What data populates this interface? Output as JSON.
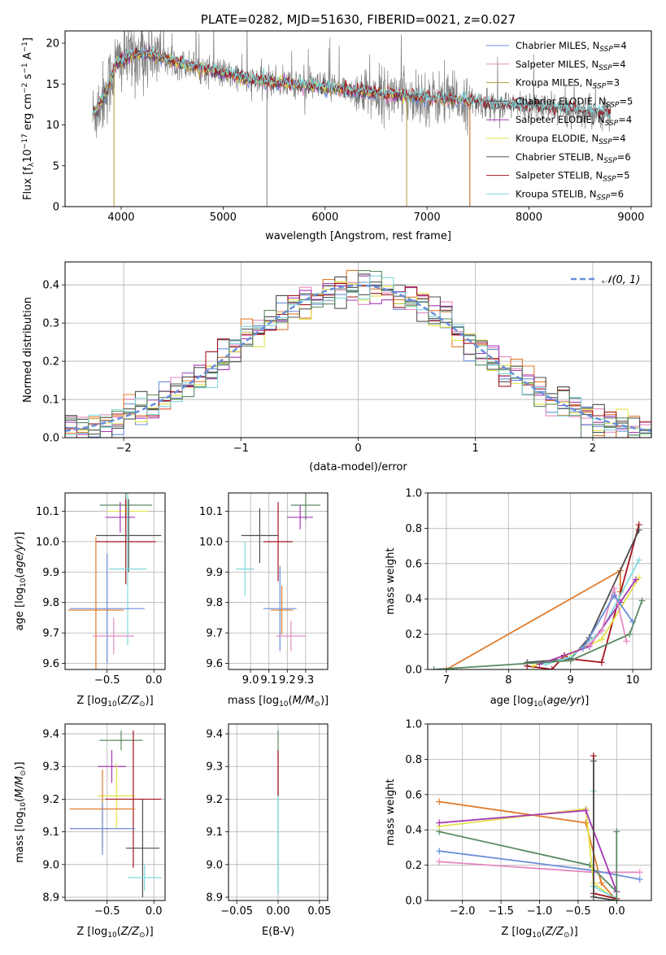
{
  "colors": {
    "Chabrier MILES": "#6a8ed9",
    "Salpeter MILES": "#e68bc2",
    "Kroupa MILES": "#b39a3a",
    "Chabrier ELODIE": "#4d4d4d",
    "Salpeter ELODIE": "#a637b5",
    "Kroupa ELODIE": "#e3e34a",
    "Chabrier STELIB": "#555555",
    "Salpeter STELIB": "#a5141e",
    "Kroupa STELIB": "#7fd9db",
    "orange": "#e07b2b",
    "green": "#5a8a64"
  },
  "chart_data": [
    {
      "id": "spectrum",
      "type": "line",
      "title": "PLATE=0282, MJD=51630, FIBERID=0021, z=0.027",
      "xlabel": "wavelength [Angstrom, rest frame]",
      "ylabel": "Flux [fλ10⁻¹⁷ erg cm⁻² s⁻¹ A⁻¹]",
      "xlim": [
        3450,
        9200
      ],
      "ylim": [
        0,
        21.5
      ],
      "xticks": [
        4000,
        5000,
        6000,
        7000,
        8000,
        9000
      ],
      "yticks": [
        0,
        5,
        10,
        15,
        20
      ],
      "grid": false,
      "legend_position": "top-right",
      "legend": [
        {
          "label": "Chabrier MILES, N",
          "sub": "SSP",
          "suffix": "=4",
          "key": "Chabrier MILES"
        },
        {
          "label": "Salpeter MILES, N",
          "sub": "SSP",
          "suffix": "=4",
          "key": "Salpeter MILES"
        },
        {
          "label": "Kroupa MILES, N",
          "sub": "SSP",
          "suffix": "=3",
          "key": "Kroupa MILES"
        },
        {
          "label": "Chabrier ELODIE, N",
          "sub": "SSP",
          "suffix": "=5",
          "key": "Chabrier ELODIE"
        },
        {
          "label": "Salpeter ELODIE, N",
          "sub": "SSP",
          "suffix": "=4",
          "key": "Salpeter ELODIE"
        },
        {
          "label": "Kroupa ELODIE, N",
          "sub": "SSP",
          "suffix": "=4",
          "key": "Kroupa ELODIE"
        },
        {
          "label": "Chabrier STELIB, N",
          "sub": "SSP",
          "suffix": "=6",
          "key": "Chabrier STELIB"
        },
        {
          "label": "Salpeter STELIB, N",
          "sub": "SSP",
          "suffix": "=5",
          "key": "Salpeter STELIB"
        },
        {
          "label": "Kroupa STELIB, N",
          "sub": "SSP",
          "suffix": "=6",
          "key": "Kroupa STELIB"
        }
      ],
      "continuum": [
        [
          3720,
          11
        ],
        [
          3850,
          14
        ],
        [
          3950,
          17.5
        ],
        [
          4100,
          18.5
        ],
        [
          4300,
          18.6
        ],
        [
          4500,
          17.8
        ],
        [
          4700,
          17.2
        ],
        [
          4900,
          16.6
        ],
        [
          5100,
          16
        ],
        [
          5300,
          15.4
        ],
        [
          5600,
          15.1
        ],
        [
          6000,
          14.6
        ],
        [
          6300,
          14.1
        ],
        [
          6600,
          13.7
        ],
        [
          7000,
          13.3
        ],
        [
          7400,
          12.9
        ],
        [
          7700,
          12.4
        ],
        [
          8000,
          12.3
        ],
        [
          8300,
          11.9
        ],
        [
          8600,
          11.6
        ],
        [
          8800,
          11.3
        ]
      ],
      "dips": [
        [
          3930,
          0
        ],
        [
          5430,
          0
        ],
        [
          6800,
          0
        ],
        [
          7420,
          0
        ]
      ]
    },
    {
      "id": "residuals",
      "type": "histogram",
      "xlabel": "(data-model)/error",
      "ylabel": "Normed distribution",
      "xlim": [
        -2.5,
        2.5
      ],
      "ylim": [
        0,
        0.46
      ],
      "xticks": [
        -2,
        -1,
        0,
        1,
        2
      ],
      "yticks": [
        0.0,
        0.1,
        0.2,
        0.3,
        0.4
      ],
      "grid": true,
      "legend_position": "top-right",
      "legend_label": "𝒩(0, 1)",
      "reference": {
        "type": "normal",
        "mean": 0,
        "sigma": 1
      }
    },
    {
      "id": "age-vs-Z",
      "type": "errorbar",
      "xlabel": "Z [log₁₀(Z/Z⊙)]",
      "ylabel": "age  [log₁₀(age/yr)]",
      "xlim": [
        -0.95,
        0.12
      ],
      "ylim": [
        9.58,
        10.16
      ],
      "xticks": [
        -0.5,
        0.0
      ],
      "yticks": [
        9.6,
        9.7,
        9.8,
        9.9,
        10.0,
        10.1
      ],
      "grid": true,
      "points": [
        {
          "x": -0.3,
          "y": 10.12,
          "xerr": 0.28,
          "yerr": 0.04,
          "color": "green"
        },
        {
          "x": -0.28,
          "y": 10.1,
          "xerr": 0.22,
          "yerr": 0.03,
          "color": "Kroupa ELODIE"
        },
        {
          "x": -0.36,
          "y": 10.08,
          "xerr": 0.16,
          "yerr": 0.05,
          "color": "Salpeter ELODIE"
        },
        {
          "x": -0.27,
          "y": 10.02,
          "xerr": 0.35,
          "yerr": 0.12,
          "color": "Chabrier ELODIE"
        },
        {
          "x": -0.3,
          "y": 10.0,
          "xerr": 0.32,
          "yerr": 0.14,
          "color": "Salpeter STELIB"
        },
        {
          "x": -0.28,
          "y": 9.91,
          "xerr": 0.2,
          "yerr": 0.25,
          "color": "Kroupa STELIB"
        },
        {
          "x": -0.5,
          "y": 9.78,
          "xerr": 0.4,
          "yerr": 0.18,
          "color": "Chabrier MILES"
        },
        {
          "x": -0.62,
          "y": 9.775,
          "xerr": 0.3,
          "yerr": 0.24,
          "color": "orange"
        },
        {
          "x": -0.43,
          "y": 9.69,
          "xerr": 0.22,
          "yerr": 0.06,
          "color": "Salpeter MILES"
        }
      ]
    },
    {
      "id": "age-vs-mass",
      "type": "errorbar",
      "xlabel": "mass [log₁₀(M/M⊙)]",
      "ylabel": "",
      "xlim": [
        8.88,
        9.42
      ],
      "ylim": [
        9.58,
        10.16
      ],
      "xticks": [
        9.0,
        9.1,
        9.2,
        9.3
      ],
      "yticks": [
        9.6,
        9.7,
        9.8,
        9.9,
        10.0,
        10.1
      ],
      "grid": true,
      "points": [
        {
          "x": 9.3,
          "y": 10.12,
          "xerr": 0.08,
          "yerr": 0.05,
          "color": "green"
        },
        {
          "x": 9.27,
          "y": 10.08,
          "xerr": 0.07,
          "yerr": 0.04,
          "color": "Salpeter ELODIE"
        },
        {
          "x": 9.05,
          "y": 10.02,
          "xerr": 0.1,
          "yerr": 0.09,
          "color": "Chabrier ELODIE"
        },
        {
          "x": 9.15,
          "y": 10.0,
          "xerr": 0.08,
          "yerr": 0.13,
          "color": "Salpeter STELIB"
        },
        {
          "x": 8.97,
          "y": 9.91,
          "xerr": 0.05,
          "yerr": 0.09,
          "color": "Kroupa STELIB"
        },
        {
          "x": 9.16,
          "y": 9.78,
          "xerr": 0.09,
          "yerr": 0.14,
          "color": "Chabrier MILES"
        },
        {
          "x": 9.17,
          "y": 9.775,
          "xerr": 0.06,
          "yerr": 0.08,
          "color": "orange"
        },
        {
          "x": 9.22,
          "y": 9.69,
          "xerr": 0.08,
          "yerr": 0.05,
          "color": "Salpeter MILES"
        }
      ]
    },
    {
      "id": "weight-vs-age",
      "type": "line",
      "xlabel": "age  [log₁₀(age/yr)]",
      "ylabel": "mass weight",
      "xlim": [
        6.7,
        10.3
      ],
      "ylim": [
        0,
        1.0
      ],
      "xticks": [
        7,
        8,
        9,
        10
      ],
      "yticks": [
        0.0,
        0.2,
        0.4,
        0.6,
        0.8,
        1.0
      ],
      "grid": true,
      "series": [
        {
          "color": "orange",
          "x": [
            7.0,
            9.8,
            9.8
          ],
          "y": [
            0.0,
            0.56,
            0.44
          ]
        },
        {
          "color": "Salpeter STELIB",
          "x": [
            8.3,
            8.7,
            8.9,
            9.0,
            9.5,
            10.1
          ],
          "y": [
            0.02,
            0.0,
            0.08,
            0.06,
            0.04,
            0.82
          ]
        },
        {
          "color": "Chabrier ELODIE",
          "x": [
            8.3,
            9.0,
            9.3,
            10.1
          ],
          "y": [
            0.04,
            0.06,
            0.18,
            0.79
          ]
        },
        {
          "color": "Kroupa STELIB",
          "x": [
            8.6,
            9.0,
            9.5,
            10.1
          ],
          "y": [
            0.03,
            0.07,
            0.22,
            0.62
          ]
        },
        {
          "color": "Kroupa ELODIE",
          "x": [
            8.4,
            9.0,
            9.5,
            10.1
          ],
          "y": [
            0.02,
            0.09,
            0.17,
            0.52
          ]
        },
        {
          "color": "Salpeter ELODIE",
          "x": [
            8.5,
            9.3,
            9.8,
            10.05
          ],
          "y": [
            0.03,
            0.13,
            0.38,
            0.51
          ]
        },
        {
          "color": "Salpeter MILES",
          "x": [
            9.3,
            9.5,
            9.7,
            9.9
          ],
          "y": [
            0.14,
            0.22,
            0.46,
            0.16
          ]
        },
        {
          "color": "Chabrier MILES",
          "x": [
            9.2,
            9.7,
            10.0
          ],
          "y": [
            0.12,
            0.42,
            0.27
          ]
        },
        {
          "color": "green",
          "x": [
            6.8,
            9.0,
            9.95,
            10.15
          ],
          "y": [
            0.0,
            0.05,
            0.2,
            0.39
          ]
        }
      ]
    },
    {
      "id": "mass-vs-Z",
      "type": "errorbar",
      "xlabel": "Z [log₁₀(Z/Z⊙)]",
      "ylabel": "mass [log₁₀(M/M⊙)]",
      "xlim": [
        -0.95,
        0.12
      ],
      "ylim": [
        8.89,
        9.43
      ],
      "xticks": [
        -0.5,
        0.0
      ],
      "yticks": [
        8.9,
        9.0,
        9.1,
        9.2,
        9.3,
        9.4
      ],
      "grid": true,
      "points": [
        {
          "x": -0.35,
          "y": 9.38,
          "xerr": 0.23,
          "yerr": 0.03,
          "color": "green"
        },
        {
          "x": -0.45,
          "y": 9.3,
          "xerr": 0.15,
          "yerr": 0.05,
          "color": "Salpeter ELODIE"
        },
        {
          "x": -0.4,
          "y": 9.21,
          "xerr": 0.2,
          "yerr": 0.1,
          "color": "Kroupa ELODIE"
        },
        {
          "x": -0.22,
          "y": 9.2,
          "xerr": 0.3,
          "yerr": 0.21,
          "color": "Salpeter STELIB"
        },
        {
          "x": -0.55,
          "y": 9.17,
          "xerr": 0.35,
          "yerr": 0.12,
          "color": "orange"
        },
        {
          "x": -0.55,
          "y": 9.11,
          "xerr": 0.35,
          "yerr": 0.08,
          "color": "Chabrier MILES"
        },
        {
          "x": -0.12,
          "y": 9.05,
          "xerr": 0.18,
          "yerr": 0.15,
          "color": "Chabrier ELODIE"
        },
        {
          "x": -0.1,
          "y": 8.96,
          "xerr": 0.18,
          "yerr": 0.04,
          "color": "Kroupa STELIB"
        }
      ]
    },
    {
      "id": "mass-vs-ebv",
      "type": "errorbar",
      "xlabel": "E(B-V)",
      "ylabel": "",
      "xlim": [
        -0.06,
        0.06
      ],
      "ylim": [
        8.89,
        9.43
      ],
      "xticks": [
        -0.05,
        0.0,
        0.05
      ],
      "yticks": [
        8.9,
        9.0,
        9.1,
        9.2,
        9.3,
        9.4
      ],
      "grid": true,
      "points": [
        {
          "x": 0.0,
          "y": 9.16,
          "xerr": 0.0,
          "yerr": 0.25,
          "color": "green"
        },
        {
          "x": 0.0,
          "y": 9.28,
          "xerr": 0.0,
          "yerr": 0.07,
          "color": "Salpeter STELIB"
        },
        {
          "x": 0.0,
          "y": 9.06,
          "xerr": 0.0,
          "yerr": 0.15,
          "color": "Kroupa STELIB"
        }
      ]
    },
    {
      "id": "weight-vs-Z",
      "type": "line",
      "xlabel": "Z [log₁₀(Z/Z⊙)]",
      "ylabel": "mass weight",
      "xlim": [
        -2.45,
        0.45
      ],
      "ylim": [
        0,
        1.0
      ],
      "xticks": [
        -2.0,
        -1.5,
        -1.0,
        -0.5,
        0.0
      ],
      "yticks": [
        0.0,
        0.2,
        0.4,
        0.6,
        0.8,
        1.0
      ],
      "grid": true,
      "series": [
        {
          "color": "orange",
          "x": [
            -2.3,
            -0.4,
            -0.2,
            0.0
          ],
          "y": [
            0.56,
            0.44,
            0.1,
            0.0
          ]
        },
        {
          "color": "Salpeter MILES",
          "x": [
            -2.3,
            -0.3,
            0.3
          ],
          "y": [
            0.22,
            0.16,
            0.16
          ]
        },
        {
          "color": "Chabrier MILES",
          "x": [
            -2.3,
            -0.3,
            0.3
          ],
          "y": [
            0.28,
            0.17,
            0.12
          ]
        },
        {
          "color": "green",
          "x": [
            -2.3,
            -0.35,
            0.0
          ],
          "y": [
            0.39,
            0.2,
            0.05
          ]
        },
        {
          "color": "Kroupa ELODIE",
          "x": [
            -2.3,
            -0.4,
            -0.3,
            0.0
          ],
          "y": [
            0.42,
            0.52,
            0.1,
            0.0
          ]
        },
        {
          "color": "Salpeter ELODIE",
          "x": [
            -2.3,
            -0.4,
            0.0
          ],
          "y": [
            0.44,
            0.51,
            0.05
          ]
        },
        {
          "color": "Kroupa STELIB",
          "x": [
            -0.3,
            -0.3,
            -0.05
          ],
          "y": [
            0.62,
            0.08,
            0.02
          ]
        },
        {
          "color": "Salpeter STELIB",
          "x": [
            -0.3,
            -0.3,
            0.0
          ],
          "y": [
            0.82,
            0.04,
            0.01
          ]
        },
        {
          "color": "Chabrier ELODIE",
          "x": [
            -0.3,
            -0.3,
            0.0
          ],
          "y": [
            0.79,
            0.02,
            0.0
          ]
        },
        {
          "color": "green",
          "x": [
            0.0,
            0.0
          ],
          "y": [
            0.39,
            0.0
          ]
        }
      ]
    }
  ]
}
